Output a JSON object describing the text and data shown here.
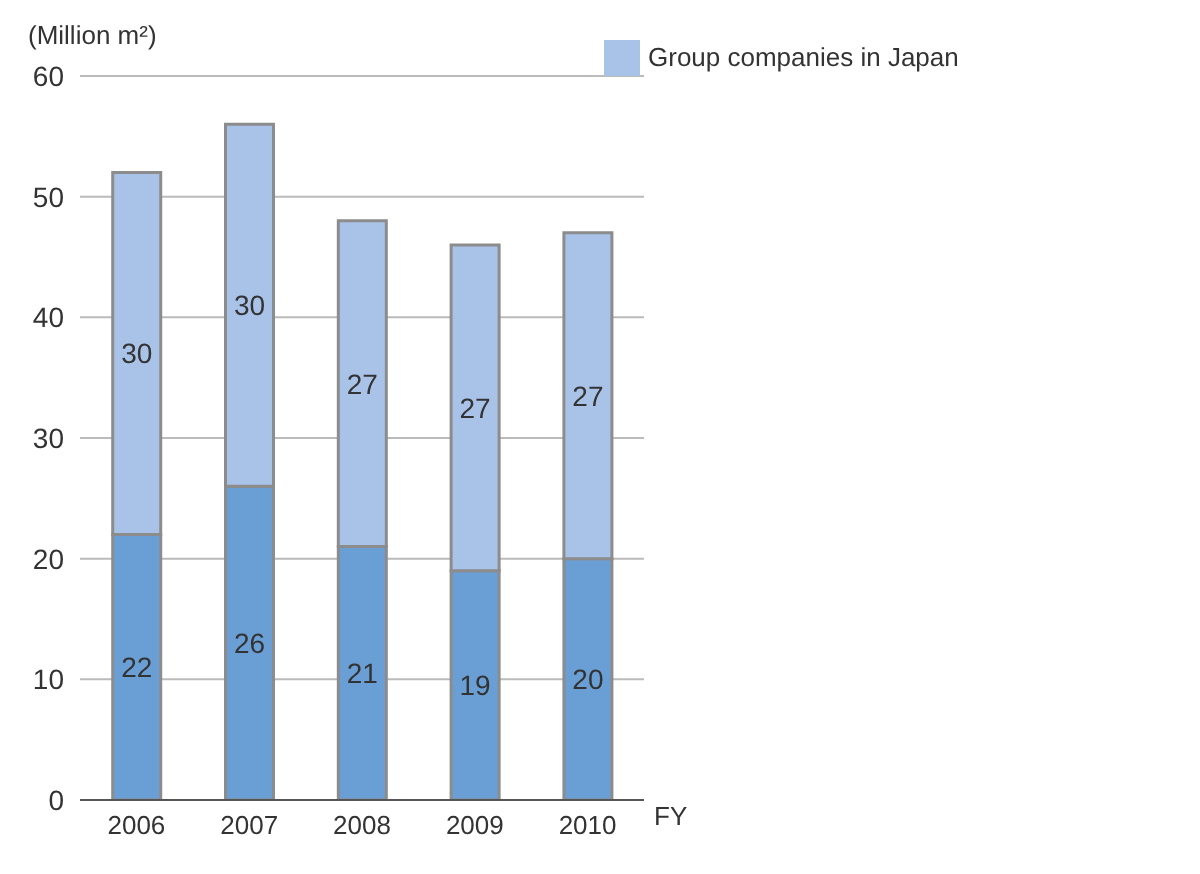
{
  "chart_data": {
    "type": "bar",
    "ylabel": "(Million m²)",
    "xlabel": "FY",
    "categories": [
      "2006",
      "2007",
      "2008",
      "2009",
      "2010"
    ],
    "stacked": true,
    "series": [
      {
        "color": "#6a9fd6",
        "values": [
          22,
          26,
          21,
          19,
          20
        ]
      },
      {
        "name": "Group companies in Japan",
        "color": "#a9c3e8",
        "values": [
          30,
          30,
          27,
          27,
          27
        ]
      }
    ],
    "ylim": [
      0,
      60
    ],
    "yticks": [
      0,
      10,
      20,
      30,
      40,
      50,
      60
    ],
    "grid": "y",
    "legend": "top right",
    "data_labels": true
  }
}
